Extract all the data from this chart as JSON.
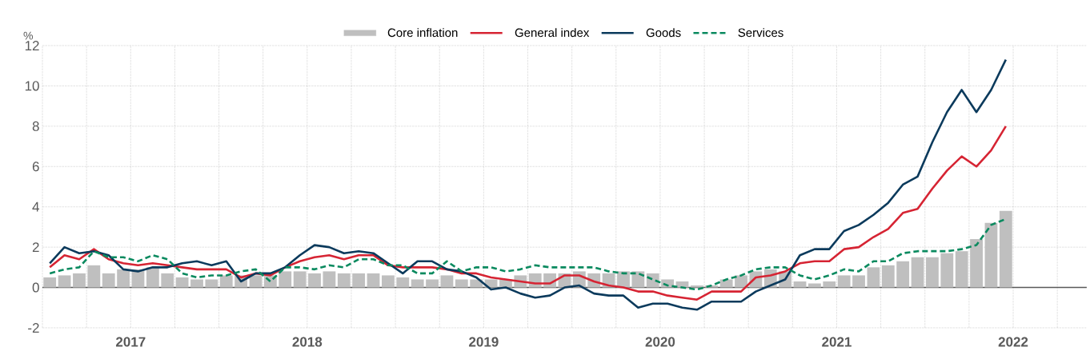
{
  "chart_data": {
    "type": "line",
    "ylabel": "%",
    "x": [
      "2016-07-16",
      "2016-08-16",
      "2016-09-16",
      "2016-10-16",
      "2016-11-16",
      "2016-12-16",
      "2017-01-16",
      "2017-02-16",
      "2017-03-16",
      "2017-04-16",
      "2017-05-16",
      "2017-06-16",
      "2017-07-16",
      "2017-08-16",
      "2017-09-16",
      "2017-10-16",
      "2017-11-16",
      "2017-12-16",
      "2018-01-16",
      "2018-02-16",
      "2018-03-16",
      "2018-04-16",
      "2018-05-16",
      "2018-06-16",
      "2018-07-16",
      "2018-08-16",
      "2018-09-16",
      "2018-10-16",
      "2018-11-16",
      "2018-12-16",
      "2019-01-16",
      "2019-02-16",
      "2019-03-16",
      "2019-04-16",
      "2019-05-16",
      "2019-06-16",
      "2019-07-16",
      "2019-08-16",
      "2019-09-16",
      "2019-10-16",
      "2019-11-16",
      "2019-12-16",
      "2020-01-16",
      "2020-02-16",
      "2020-03-16",
      "2020-04-16",
      "2020-05-16",
      "2020-06-16",
      "2020-07-16",
      "2020-08-16",
      "2020-09-16",
      "2020-10-16",
      "2020-11-16",
      "2020-12-16",
      "2021-01-16",
      "2021-02-16",
      "2021-03-16",
      "2021-04-16",
      "2021-05-16",
      "2021-06-16",
      "2021-07-16",
      "2021-08-16",
      "2021-09-16",
      "2021-10-16",
      "2021-11-16",
      "2021-12-16"
    ],
    "series": [
      {
        "name": "Core inflation",
        "type": "bar",
        "color": "#bfbfbf",
        "values": [
          0.5,
          0.6,
          0.7,
          1.1,
          0.7,
          0.9,
          0.9,
          1.0,
          0.7,
          0.5,
          0.4,
          0.4,
          0.6,
          0.6,
          0.6,
          0.6,
          0.8,
          0.8,
          0.7,
          0.8,
          0.7,
          0.7,
          0.7,
          0.6,
          0.5,
          0.4,
          0.4,
          0.6,
          0.4,
          0.4,
          0.4,
          0.4,
          0.6,
          0.7,
          0.7,
          0.7,
          0.8,
          0.7,
          0.7,
          0.8,
          0.8,
          0.7,
          0.4,
          0.3,
          0.1,
          0.1,
          0.4,
          0.6,
          0.8,
          0.9,
          0.8,
          0.3,
          0.2,
          0.3,
          0.6,
          0.6,
          1.0,
          1.1,
          1.3,
          1.5,
          1.5,
          1.7,
          1.8,
          2.4,
          3.2,
          3.8
        ]
      },
      {
        "name": "General index",
        "color": "#d62433",
        "line_style": "solid",
        "values": [
          1.0,
          1.6,
          1.4,
          1.9,
          1.4,
          1.2,
          1.1,
          1.2,
          1.1,
          1.0,
          0.9,
          0.9,
          0.9,
          0.5,
          0.7,
          0.6,
          1.0,
          1.3,
          1.5,
          1.6,
          1.4,
          1.6,
          1.6,
          1.1,
          1.0,
          1.0,
          1.0,
          0.9,
          0.7,
          0.7,
          0.5,
          0.4,
          0.3,
          0.2,
          0.2,
          0.6,
          0.6,
          0.3,
          0.1,
          0.0,
          -0.2,
          -0.2,
          -0.4,
          -0.5,
          -0.6,
          -0.2,
          -0.2,
          -0.2,
          0.5,
          0.6,
          0.8,
          1.2,
          1.3,
          1.3,
          1.9,
          2.0,
          2.5,
          2.9,
          3.7,
          3.9,
          4.9,
          5.8,
          6.5,
          6.0,
          6.8,
          8.0
        ]
      },
      {
        "name": "Goods",
        "color": "#0b3a5c",
        "line_style": "solid",
        "values": [
          1.2,
          2.0,
          1.7,
          1.8,
          1.6,
          0.9,
          0.8,
          1.0,
          1.0,
          1.2,
          1.3,
          1.1,
          1.3,
          0.3,
          0.7,
          0.7,
          1.0,
          1.6,
          2.1,
          2.0,
          1.7,
          1.8,
          1.7,
          1.2,
          0.7,
          1.3,
          1.3,
          0.9,
          0.8,
          0.5,
          -0.1,
          0.0,
          -0.3,
          -0.5,
          -0.4,
          0.0,
          0.1,
          -0.3,
          -0.4,
          -0.4,
          -1.0,
          -0.8,
          -0.8,
          -1.0,
          -1.1,
          -0.7,
          -0.7,
          -0.7,
          -0.2,
          0.1,
          0.4,
          1.6,
          1.9,
          1.9,
          2.8,
          3.1,
          3.6,
          4.2,
          5.1,
          5.5,
          7.2,
          8.7,
          9.8,
          8.7,
          9.8,
          11.3
        ]
      },
      {
        "name": "Services",
        "color": "#0a8a5f",
        "line_style": "dashed",
        "values": [
          0.7,
          0.9,
          1.0,
          1.8,
          1.5,
          1.5,
          1.3,
          1.6,
          1.4,
          0.7,
          0.5,
          0.6,
          0.6,
          0.8,
          0.9,
          0.3,
          1.0,
          1.0,
          0.9,
          1.1,
          1.0,
          1.4,
          1.4,
          1.1,
          1.1,
          0.7,
          0.7,
          1.3,
          0.8,
          1.0,
          1.0,
          0.8,
          0.9,
          1.1,
          1.0,
          1.0,
          1.0,
          1.0,
          0.8,
          0.7,
          0.7,
          0.4,
          0.1,
          0.0,
          -0.1,
          0.1,
          0.4,
          0.6,
          0.9,
          1.0,
          1.0,
          0.6,
          0.4,
          0.6,
          0.9,
          0.8,
          1.3,
          1.3,
          1.7,
          1.8,
          1.8,
          1.8,
          1.9,
          2.1,
          3.1,
          3.4
        ]
      }
    ],
    "xlim": [
      "2016-07",
      "2022-06"
    ],
    "xticks": [
      {
        "value": "2016-07",
        "label": null
      },
      {
        "value": "2016-10",
        "label": null
      },
      {
        "value": "2017-01",
        "label": "2017"
      },
      {
        "value": "2017-04",
        "label": null
      },
      {
        "value": "2017-07",
        "label": null
      },
      {
        "value": "2017-10",
        "label": null
      },
      {
        "value": "2018-01",
        "label": "2018"
      },
      {
        "value": "2018-04",
        "label": null
      },
      {
        "value": "2018-07",
        "label": null
      },
      {
        "value": "2018-10",
        "label": null
      },
      {
        "value": "2019-01",
        "label": "2019"
      },
      {
        "value": "2019-04",
        "label": null
      },
      {
        "value": "2019-07",
        "label": null
      },
      {
        "value": "2019-10",
        "label": null
      },
      {
        "value": "2020-01",
        "label": "2020"
      },
      {
        "value": "2020-04",
        "label": null
      },
      {
        "value": "2020-07",
        "label": null
      },
      {
        "value": "2020-10",
        "label": null
      },
      {
        "value": "2021-01",
        "label": "2021"
      },
      {
        "value": "2021-04",
        "label": null
      },
      {
        "value": "2021-07",
        "label": null
      },
      {
        "value": "2021-10",
        "label": null
      },
      {
        "value": "2022-01",
        "label": "2022"
      },
      {
        "value": "2022-04",
        "label": null
      }
    ],
    "ylim": [
      -2,
      12
    ],
    "yticks": [
      -2,
      0,
      2,
      4,
      6,
      8,
      10,
      12
    ],
    "ref_lines": [
      {
        "axis": "y",
        "value": 0,
        "color": "#595959"
      }
    ],
    "grid": true,
    "legend": "top"
  }
}
